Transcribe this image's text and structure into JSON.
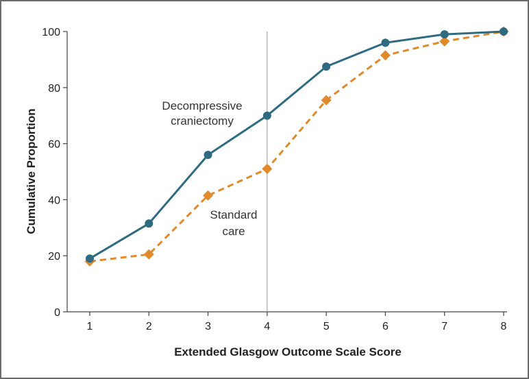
{
  "chart_data": {
    "type": "line",
    "xlabel": "Extended Glasgow Outcome Scale Score",
    "ylabel": "Cumulative Proportion",
    "xlim": [
      1,
      8
    ],
    "ylim": [
      0,
      100
    ],
    "x": [
      1,
      2,
      3,
      4,
      5,
      6,
      7,
      8
    ],
    "x_ticks": [
      "1",
      "2",
      "3",
      "4",
      "5",
      "6",
      "7",
      "8"
    ],
    "y_ticks": [
      "0",
      "20",
      "40",
      "60",
      "80",
      "100"
    ],
    "grid": false,
    "reference_line_x": 4,
    "series": [
      {
        "name": "Decompressive craniectomy",
        "label_lines": [
          "Decompressive",
          "craniectomy"
        ],
        "values": [
          19,
          31.5,
          56,
          70,
          87.5,
          96,
          99,
          100
        ],
        "color": "#2e6b80",
        "marker": "circle",
        "dash": "solid"
      },
      {
        "name": "Standard care",
        "label_lines": [
          "Standard",
          "care"
        ],
        "values": [
          18,
          20.5,
          41.5,
          51,
          75.5,
          91.5,
          96.5,
          100
        ],
        "color": "#e08a2c",
        "marker": "diamond",
        "dash": "dashed"
      }
    ]
  }
}
